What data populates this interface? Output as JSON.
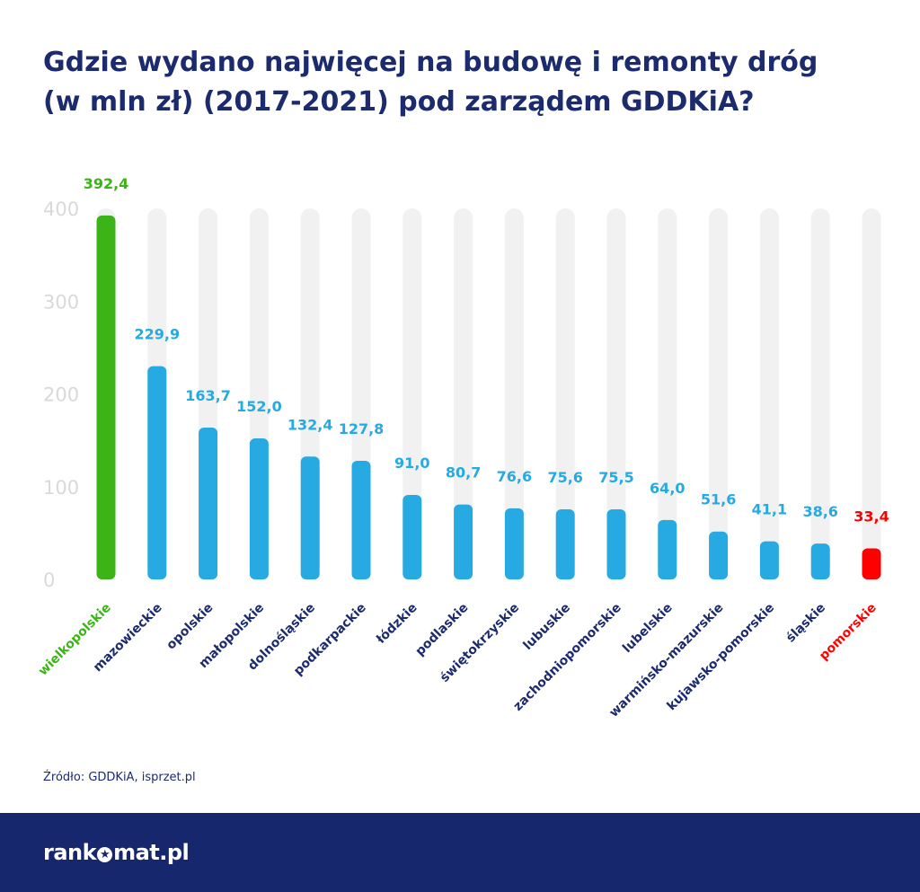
{
  "title_lines": [
    "Gdzie wydano najwięcej na budowę i remonty dróg",
    "(w mln zł) (2017-2021) pod zarządem GDDKiA?"
  ],
  "source": "Źródło: GDDKiA, isprzet.pl",
  "footer": {
    "logo_left": "rank",
    "logo_icon": "star-circle-icon",
    "logo_right": "mat.pl",
    "background": "#17276d"
  },
  "chart_data": {
    "type": "bar",
    "title": "Gdzie wydano najwięcej na budowę i remonty dróg (w mln zł) (2017-2021) pod zarządem GDDKiA?",
    "categories": [
      "wielkopolskie",
      "mazowieckie",
      "opolskie",
      "małopolskie",
      "dolnośląskie",
      "podkarpackie",
      "łódzkie",
      "podlaskie",
      "świętokrzyskie",
      "lubuskie",
      "zachodniopomorskie",
      "lubelskie",
      "warmińsko-mazurskie",
      "kujawsko-pomorskie",
      "śląskie",
      "pomorskie"
    ],
    "values": [
      392.4,
      229.9,
      163.7,
      152.0,
      132.4,
      127.8,
      91.0,
      80.7,
      76.6,
      75.6,
      75.5,
      64.0,
      51.6,
      41.1,
      38.6,
      33.4
    ],
    "value_labels": [
      "392,4",
      "229,9",
      "163,7",
      "152,0",
      "132,4",
      "127,8",
      "91,0",
      "80,7",
      "76,6",
      "75,6",
      "75,5",
      "64,0",
      "51,6",
      "41,1",
      "38,6",
      "33,4"
    ],
    "ylim": [
      0,
      400
    ],
    "yticks": [
      "0",
      "100",
      "200",
      "300",
      "400"
    ],
    "xlabel": "",
    "ylabel": "",
    "grid": false,
    "colors": {
      "default": "#27a9e1",
      "highest": "#3cb418",
      "lowest": "#ff0000",
      "track": "#f1f1f1",
      "axis_label": "#1c2a6e",
      "tick": "#d9d9d9"
    }
  }
}
